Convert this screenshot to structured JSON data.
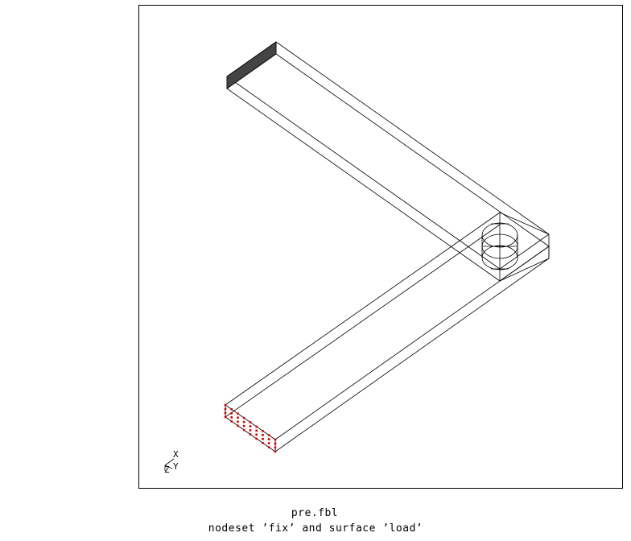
{
  "file_name": "pre.fbl",
  "caption": "nodeset ’fix’ and surface ’load’",
  "triad": {
    "x_label": "X",
    "y_label": "Y",
    "z_label": "Z"
  },
  "colors": {
    "line": "#000000",
    "fix_face": "#444444",
    "load_nodes": "#cc0000"
  }
}
